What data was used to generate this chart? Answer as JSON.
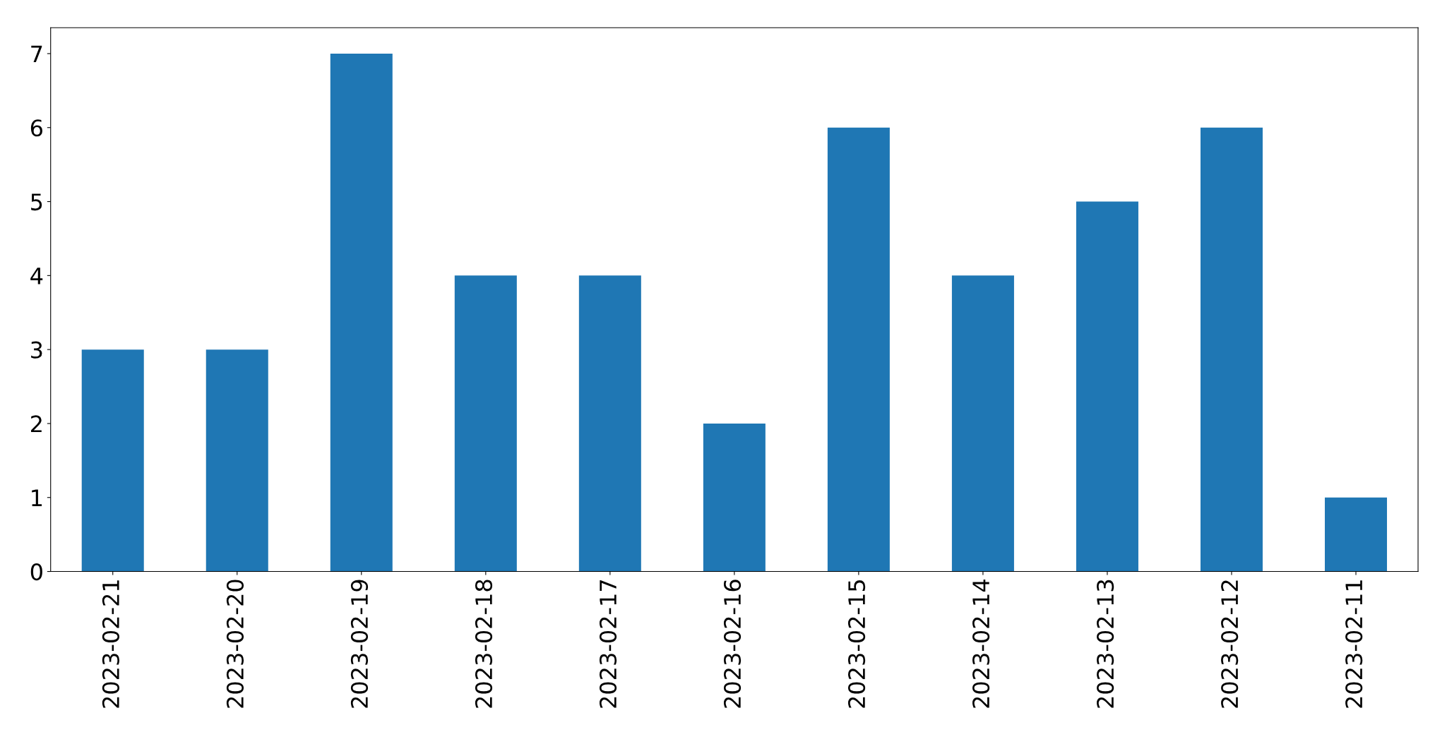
{
  "chart_data": {
    "type": "bar",
    "categories": [
      "2023-02-21",
      "2023-02-20",
      "2023-02-19",
      "2023-02-18",
      "2023-02-17",
      "2023-02-16",
      "2023-02-15",
      "2023-02-14",
      "2023-02-13",
      "2023-02-12",
      "2023-02-11"
    ],
    "values": [
      3,
      3,
      7,
      4,
      4,
      2,
      6,
      4,
      5,
      6,
      1
    ],
    "color": "#1f77b4",
    "ylim": [
      0,
      7.35
    ],
    "yticks": [
      0,
      1,
      2,
      3,
      4,
      5,
      6,
      7
    ],
    "grid": false
  }
}
